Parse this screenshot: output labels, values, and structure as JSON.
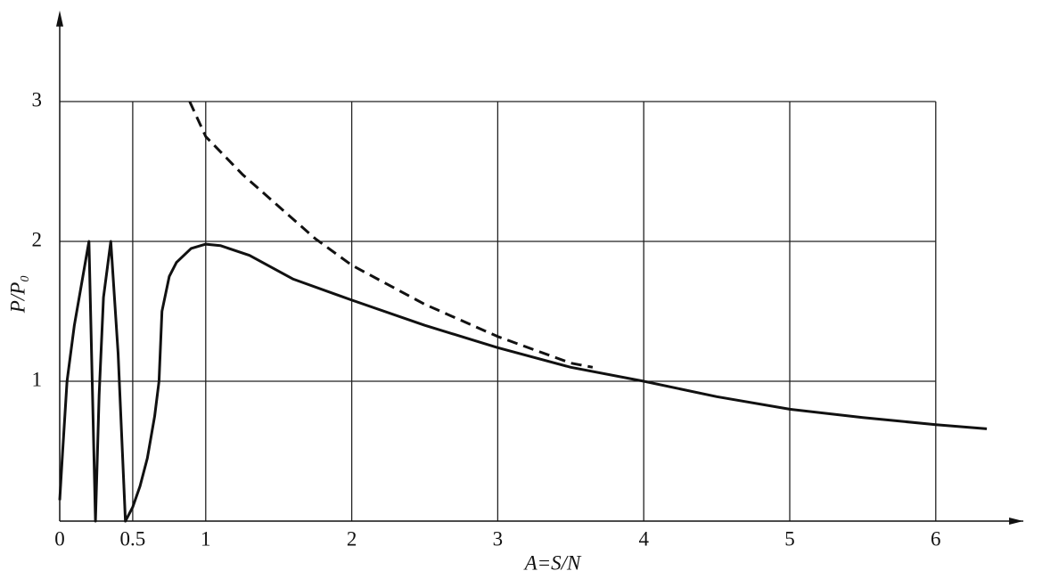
{
  "chart_data": {
    "type": "line",
    "x_label": "A=S/N",
    "y_label": "P/P₀",
    "xlim": [
      0,
      6.6
    ],
    "ylim": [
      0,
      3.6
    ],
    "xticks": [
      0,
      0.5,
      1,
      2,
      3,
      4,
      5,
      6
    ],
    "yticks": [
      1,
      2,
      3
    ],
    "grid": true,
    "series": [
      {
        "color": "#111111",
        "linestyle": "solid",
        "x": [
          0,
          0.02,
          0.05,
          0.1,
          0.15,
          0.2,
          0.245,
          0.27,
          0.3,
          0.35,
          0.4,
          0.45,
          0.5,
          0.55,
          0.6,
          0.65,
          0.68,
          0.7,
          0.75,
          0.8,
          0.9,
          1.0,
          1.1,
          1.3,
          1.6,
          2.0,
          2.5,
          3.0,
          3.5,
          4.0,
          4.5,
          5.0,
          5.5,
          6.0,
          6.35
        ],
        "values": [
          0.15,
          0.5,
          1.0,
          1.4,
          1.7,
          2.0,
          0,
          0.9,
          1.6,
          2.0,
          1.2,
          0,
          0.1,
          0.25,
          0.45,
          0.75,
          1.0,
          1.5,
          1.75,
          1.85,
          1.95,
          1.98,
          1.97,
          1.9,
          1.73,
          1.58,
          1.4,
          1.24,
          1.1,
          1.0,
          0.89,
          0.8,
          0.74,
          0.69,
          0.66
        ]
      },
      {
        "color": "#111111",
        "linestyle": "dashed",
        "x": [
          0.89,
          1.0,
          1.25,
          1.5,
          1.75,
          2.0,
          2.5,
          3.0,
          3.5,
          3.65
        ],
        "values": [
          3.0,
          2.75,
          2.48,
          2.25,
          2.02,
          1.83,
          1.55,
          1.32,
          1.13,
          1.1
        ]
      }
    ]
  }
}
